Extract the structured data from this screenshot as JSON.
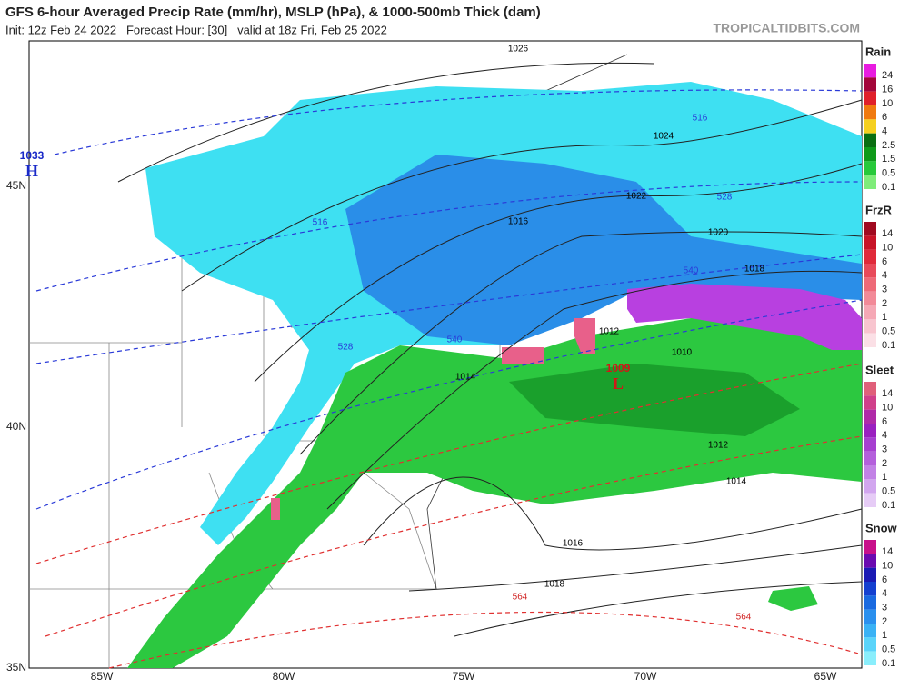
{
  "header": {
    "title": "GFS 6-hour Averaged Precip Rate (mm/hr), MSLP (hPa), & 1000-500mb Thick (dam)",
    "subtitle": "Init: 12z Feb 24 2022   Forecast Hour: [30]   valid at 18z Fri, Feb 25 2022",
    "credit": "TROPICALTIDBITS.COM"
  },
  "map": {
    "lat_labels": [
      "45N",
      "40N",
      "35N"
    ],
    "lon_labels": [
      "85W",
      "80W",
      "75W",
      "70W",
      "65W"
    ],
    "isobar_labels": [
      "1026",
      "1024",
      "1022",
      "1020",
      "1018",
      "1016",
      "1014",
      "1012",
      "1010",
      "1012",
      "1014",
      "1016",
      "1018"
    ],
    "thickness_labels": [
      "516",
      "528",
      "540",
      "516",
      "528",
      "540",
      "564",
      "564"
    ],
    "centers": [
      {
        "value": "1033",
        "label": "H"
      },
      {
        "value": "1009",
        "label": "L"
      }
    ]
  },
  "legends": [
    {
      "title": "Rain",
      "labels": [
        "24",
        "16",
        "10",
        "6",
        "4",
        "2.5",
        "1.5",
        "0.5",
        "0.1"
      ],
      "colors": [
        "#e81ce0",
        "#a3063a",
        "#e0202a",
        "#f07a10",
        "#f5d020",
        "#0a6e12",
        "#0f9a1a",
        "#27c93a",
        "#7fec7a"
      ]
    },
    {
      "title": "FrzR",
      "labels": [
        "14",
        "10",
        "6",
        "4",
        "3",
        "2",
        "1",
        "0.5",
        "0.1"
      ],
      "colors": [
        "#a00a20",
        "#c81428",
        "#e02a3a",
        "#e84a5a",
        "#ee6a78",
        "#f28a98",
        "#f5a8b5",
        "#f8c5cf",
        "#fbe0e6"
      ]
    },
    {
      "title": "Sleet",
      "labels": [
        "14",
        "10",
        "6",
        "4",
        "3",
        "2",
        "1",
        "0.5",
        "0.1"
      ],
      "colors": [
        "#e0607a",
        "#d0408a",
        "#b02aa8",
        "#9a20c0",
        "#a640d0",
        "#b460dc",
        "#c282e6",
        "#d2a6ef",
        "#e6ccf6"
      ]
    },
    {
      "title": "Snow",
      "labels": [
        "14",
        "10",
        "6",
        "4",
        "3",
        "2",
        "1",
        "0.5",
        "0.1"
      ],
      "colors": [
        "#c8108a",
        "#6a0ab0",
        "#1a1ab4",
        "#1440d0",
        "#1a6ae0",
        "#2a90ee",
        "#3ab2f5",
        "#5ad4fa",
        "#8aeefc"
      ]
    }
  ]
}
